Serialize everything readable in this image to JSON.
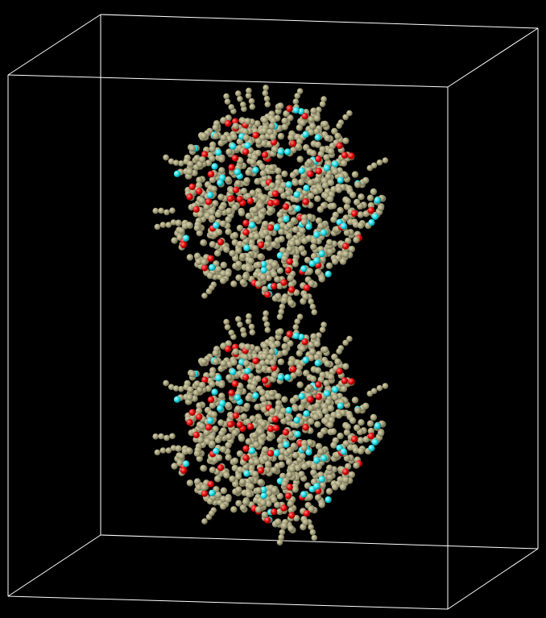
{
  "scene": {
    "description_tag": "molecular-dynamics-render",
    "background_color": "#000000",
    "box_edge_color": "#ffffff",
    "particle_types": [
      {
        "name": "bead",
        "color": "#a8a37f",
        "highlight": "#d8d3ad",
        "shade": "#6d6a4f"
      },
      {
        "name": "cyan-atom",
        "color": "#22e0e8",
        "highlight": "#b8fbff",
        "shade": "#0c8d94"
      },
      {
        "name": "red-atom",
        "color": "#e80b0b",
        "highlight": "#ff8a8a",
        "shade": "#8a0303"
      }
    ],
    "clusters": [
      {
        "name": "upper-cluster",
        "bead_count": 900,
        "cyan_count": 60,
        "red_count": 70
      },
      {
        "name": "lower-cluster",
        "bead_count": 900,
        "cyan_count": 60,
        "red_count": 70
      }
    ]
  }
}
